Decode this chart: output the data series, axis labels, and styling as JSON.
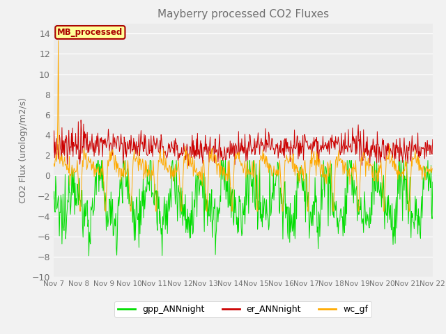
{
  "title": "Mayberry processed CO2 Fluxes",
  "ylabel": "CO2 Flux (urology/m2/s)",
  "ylim": [
    -10,
    15
  ],
  "yticks": [
    -10,
    -8,
    -6,
    -4,
    -2,
    0,
    2,
    4,
    6,
    8,
    10,
    12,
    14
  ],
  "xtick_labels": [
    "Nov 7",
    "Nov 8",
    "Nov 9",
    "Nov 10",
    "Nov 11",
    "Nov 12",
    "Nov 13",
    "Nov 14",
    "Nov 15",
    "Nov 16",
    "Nov 17",
    "Nov 18",
    "Nov 19",
    "Nov 20",
    "Nov 21",
    "Nov 22"
  ],
  "annotation_text": "MB_processed",
  "annotation_color": "#aa0000",
  "annotation_bg": "#ffff99",
  "line_colors": {
    "gpp": "#00dd00",
    "er": "#cc0000",
    "wc": "#ffaa00"
  },
  "legend_labels": [
    "gpp_ANNnight",
    "er_ANNnight",
    "wc_gf"
  ],
  "plot_bg_color": "#ebebeb",
  "fig_bg_color": "#f2f2f2",
  "grid_color": "#ffffff",
  "title_color": "#707070",
  "tick_color": "#707070",
  "seed": 12345
}
